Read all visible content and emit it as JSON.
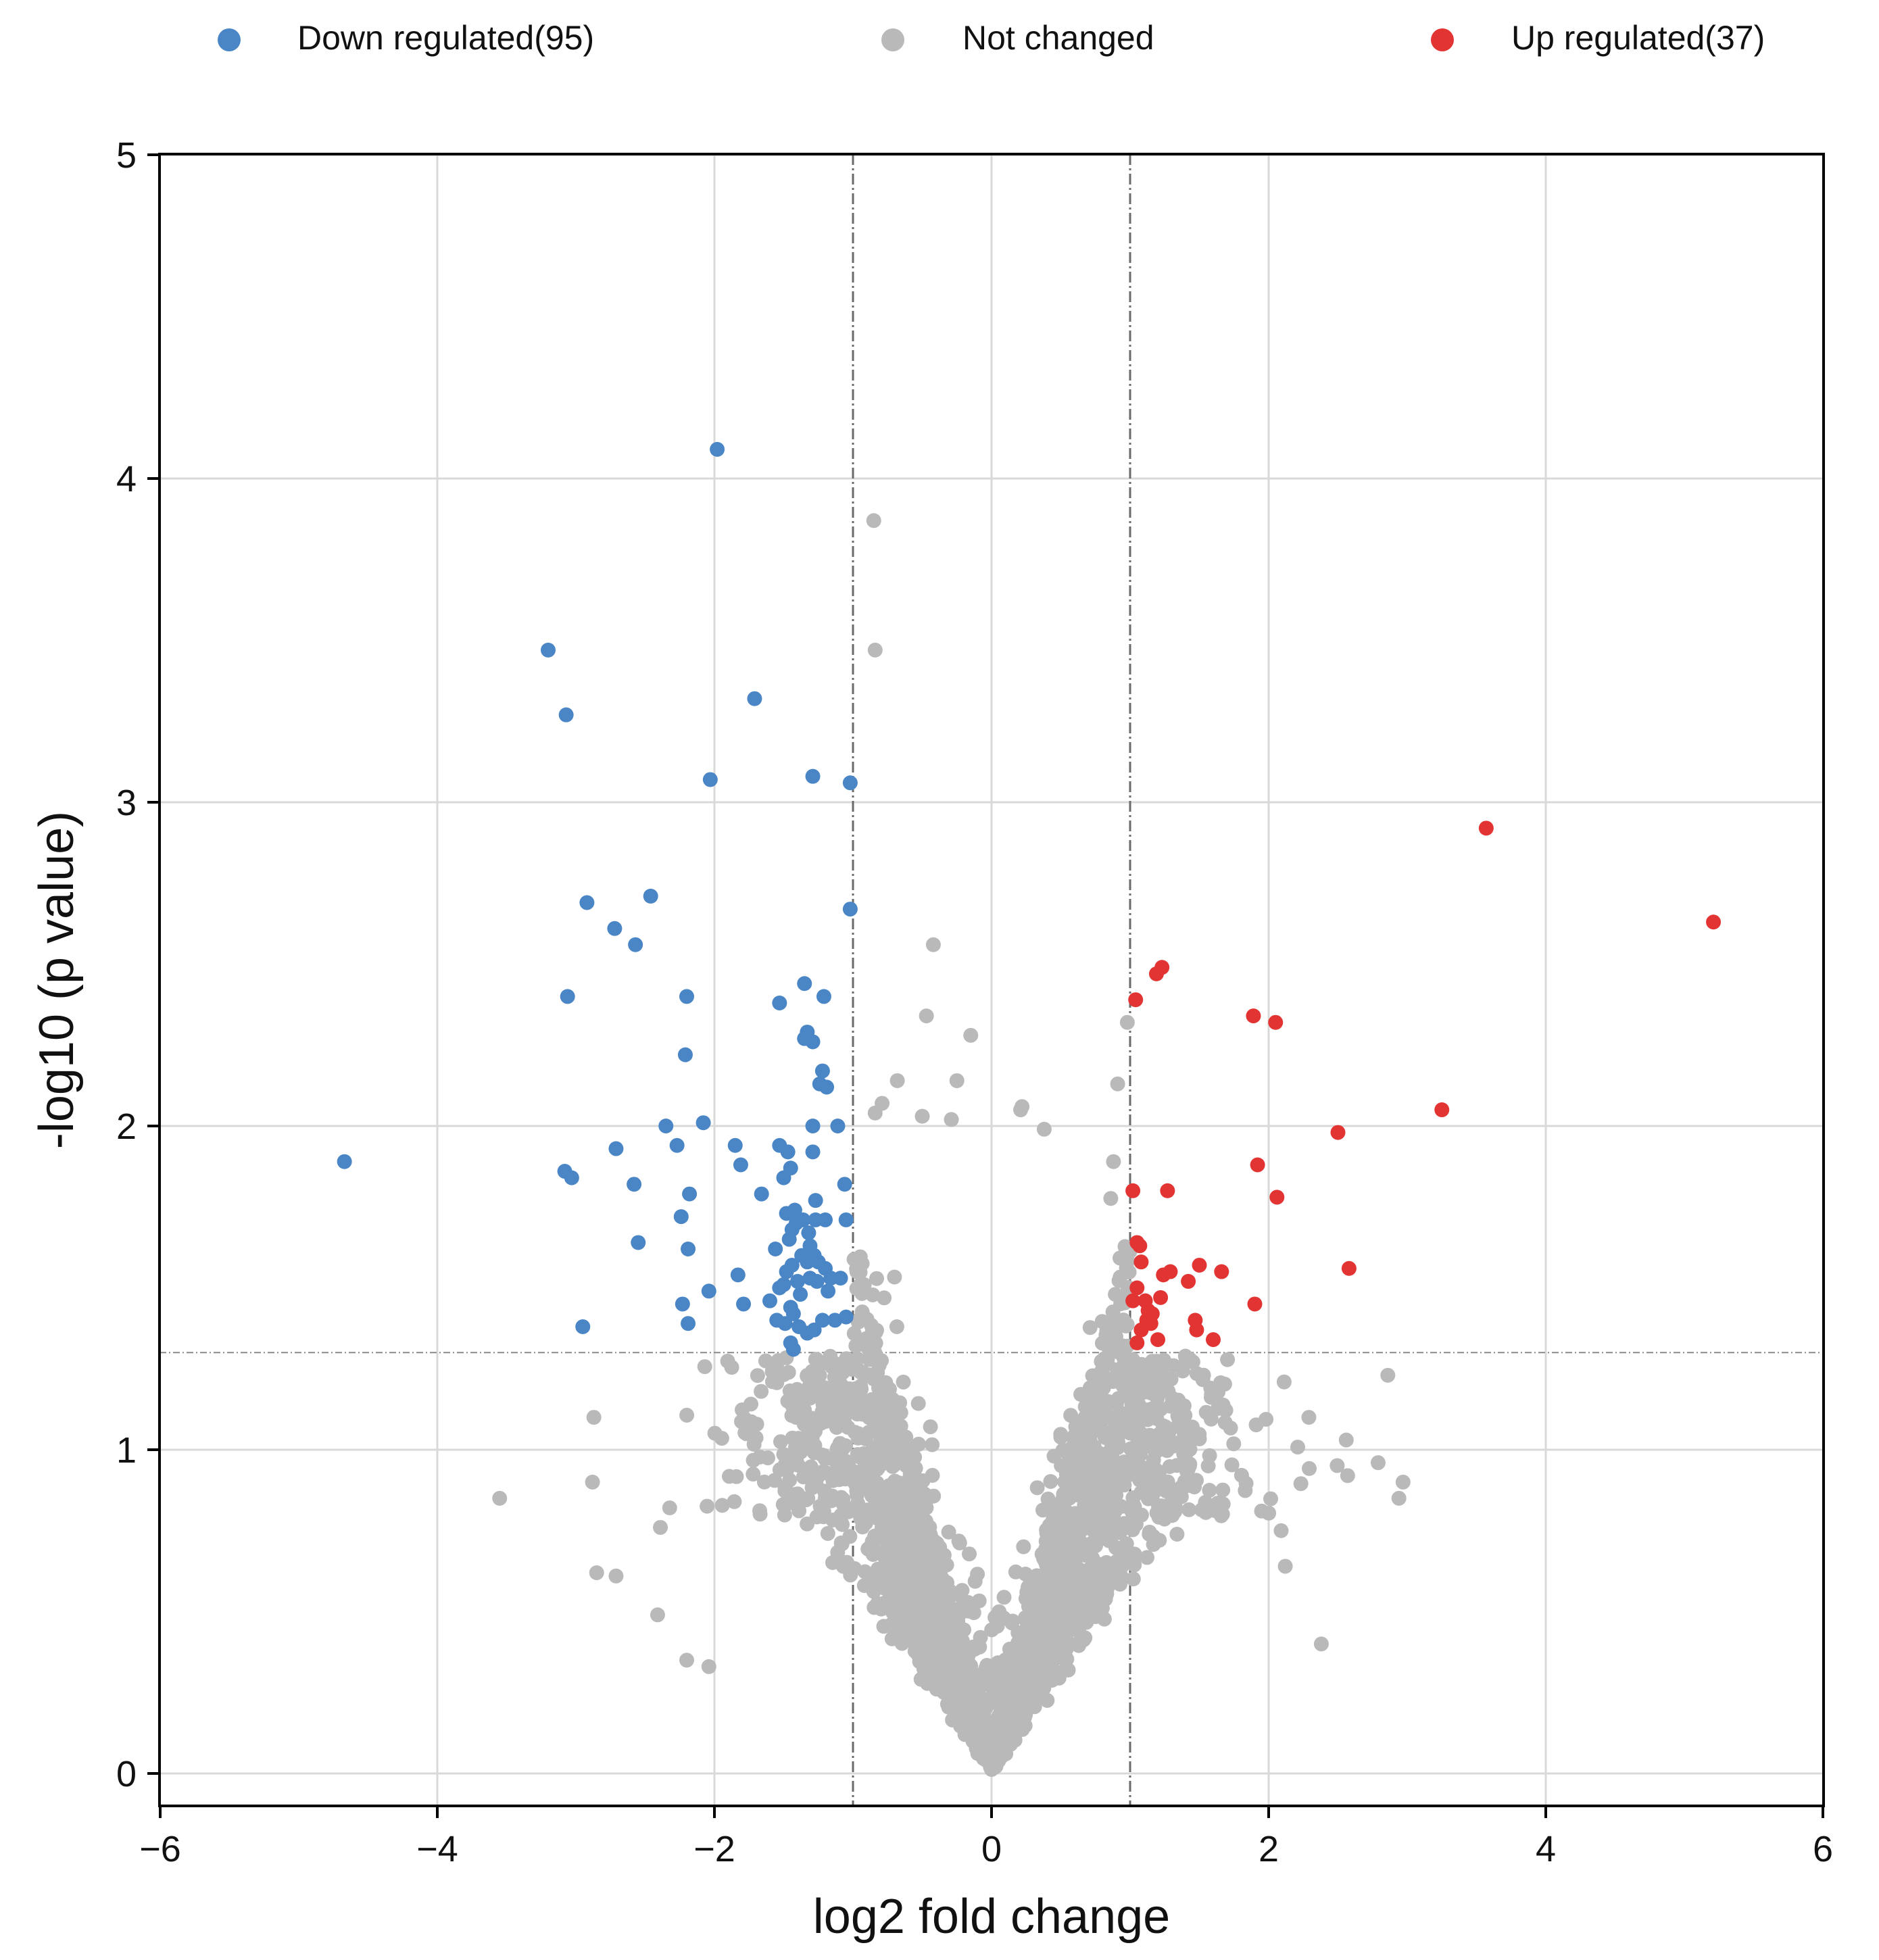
{
  "chart_data": {
    "type": "scatter",
    "title": "",
    "xlabel": "log2 fold change",
    "ylabel": "-log10 (p value)",
    "xlim": [
      -6,
      6
    ],
    "ylim": [
      -0.1,
      5
    ],
    "xticks": [
      -6,
      -4,
      -2,
      0,
      2,
      4,
      6
    ],
    "xtick_labels": [
      "−6",
      "−4",
      "−2",
      "0",
      "2",
      "4",
      "6"
    ],
    "yticks": [
      0,
      1,
      2,
      3,
      4,
      5
    ],
    "ytick_labels": [
      "0",
      "1",
      "2",
      "3",
      "4",
      "5"
    ],
    "grid": true,
    "thresholds": {
      "log2fc": [
        -1,
        1
      ],
      "neg_log10_p": 1.3
    },
    "legend": {
      "placement": "top",
      "entries": [
        {
          "label": "Down regulated(95)",
          "color": "#4a86c6"
        },
        {
          "label": "Not changed",
          "color": "#b9b9b9"
        },
        {
          "label": "Up regulated(37)",
          "color": "#e33434"
        }
      ]
    },
    "series": [
      {
        "name": "Down regulated",
        "color": "#4a86c6",
        "points": [
          [
            -1.98,
            4.09
          ],
          [
            -3.2,
            3.47
          ],
          [
            -3.07,
            3.27
          ],
          [
            -1.71,
            3.32
          ],
          [
            -2.03,
            3.07
          ],
          [
            -1.29,
            3.08
          ],
          [
            -1.02,
            3.06
          ],
          [
            -4.67,
            1.89
          ],
          [
            -2.92,
            2.69
          ],
          [
            -2.46,
            2.71
          ],
          [
            -2.72,
            2.61
          ],
          [
            -2.57,
            2.56
          ],
          [
            -1.02,
            2.67
          ],
          [
            -3.06,
            2.4
          ],
          [
            -2.2,
            2.4
          ],
          [
            -1.35,
            2.44
          ],
          [
            -1.21,
            2.4
          ],
          [
            -1.53,
            2.38
          ],
          [
            -2.21,
            2.22
          ],
          [
            -1.33,
            2.29
          ],
          [
            -1.35,
            2.27
          ],
          [
            -1.29,
            2.26
          ],
          [
            -1.22,
            2.17
          ],
          [
            -1.24,
            2.13
          ],
          [
            -1.19,
            2.12
          ],
          [
            -2.35,
            2.0
          ],
          [
            -2.08,
            2.01
          ],
          [
            -1.29,
            2.0
          ],
          [
            -1.11,
            2.0
          ],
          [
            -1.85,
            1.94
          ],
          [
            -2.27,
            1.94
          ],
          [
            -1.53,
            1.94
          ],
          [
            -1.47,
            1.92
          ],
          [
            -1.29,
            1.92
          ],
          [
            -1.81,
            1.88
          ],
          [
            -3.08,
            1.86
          ],
          [
            -3.03,
            1.84
          ],
          [
            -2.71,
            1.93
          ],
          [
            -1.5,
            1.84
          ],
          [
            -1.45,
            1.87
          ],
          [
            -2.58,
            1.82
          ],
          [
            -1.06,
            1.82
          ],
          [
            -2.18,
            1.79
          ],
          [
            -1.66,
            1.79
          ],
          [
            -1.27,
            1.77
          ],
          [
            -1.48,
            1.73
          ],
          [
            -1.42,
            1.74
          ],
          [
            -1.36,
            1.71
          ],
          [
            -1.27,
            1.71
          ],
          [
            -1.2,
            1.71
          ],
          [
            -1.05,
            1.71
          ],
          [
            -2.24,
            1.72
          ],
          [
            -1.41,
            1.7
          ],
          [
            -1.44,
            1.68
          ],
          [
            -1.32,
            1.67
          ],
          [
            -2.55,
            1.64
          ],
          [
            -2.19,
            1.62
          ],
          [
            -1.56,
            1.62
          ],
          [
            -1.46,
            1.65
          ],
          [
            -1.31,
            1.63
          ],
          [
            -1.28,
            1.6
          ],
          [
            -1.37,
            1.6
          ],
          [
            -1.33,
            1.58
          ],
          [
            -1.25,
            1.58
          ],
          [
            -1.44,
            1.57
          ],
          [
            -1.2,
            1.56
          ],
          [
            -1.48,
            1.55
          ],
          [
            -1.83,
            1.54
          ],
          [
            -1.16,
            1.53
          ],
          [
            -1.09,
            1.53
          ],
          [
            -1.31,
            1.53
          ],
          [
            -1.53,
            1.5
          ],
          [
            -1.5,
            1.51
          ],
          [
            -1.4,
            1.52
          ],
          [
            -1.26,
            1.52
          ],
          [
            -2.04,
            1.49
          ],
          [
            -1.18,
            1.49
          ],
          [
            -2.23,
            1.45
          ],
          [
            -1.79,
            1.45
          ],
          [
            -1.45,
            1.44
          ],
          [
            -1.43,
            1.42
          ],
          [
            -1.49,
            1.39
          ],
          [
            -1.55,
            1.4
          ],
          [
            -1.39,
            1.38
          ],
          [
            -1.33,
            1.36
          ],
          [
            -1.28,
            1.37
          ],
          [
            -1.22,
            1.4
          ],
          [
            -1.13,
            1.4
          ],
          [
            -2.19,
            1.39
          ],
          [
            -2.95,
            1.38
          ],
          [
            -1.43,
            1.31
          ],
          [
            -1.45,
            1.33
          ],
          [
            -1.05,
            1.41
          ],
          [
            -1.6,
            1.46
          ],
          [
            -1.38,
            1.48
          ]
        ]
      },
      {
        "name": "Up regulated",
        "color": "#e33434",
        "points": [
          [
            3.57,
            2.92
          ],
          [
            5.21,
            2.63
          ],
          [
            1.23,
            2.49
          ],
          [
            1.19,
            2.47
          ],
          [
            1.04,
            2.39
          ],
          [
            1.89,
            2.34
          ],
          [
            2.05,
            2.32
          ],
          [
            3.25,
            2.05
          ],
          [
            2.5,
            1.98
          ],
          [
            1.02,
            1.8
          ],
          [
            1.27,
            1.8
          ],
          [
            1.92,
            1.88
          ],
          [
            2.06,
            1.78
          ],
          [
            1.05,
            1.64
          ],
          [
            1.07,
            1.63
          ],
          [
            1.08,
            1.58
          ],
          [
            2.58,
            1.56
          ],
          [
            1.5,
            1.57
          ],
          [
            1.66,
            1.55
          ],
          [
            1.29,
            1.55
          ],
          [
            1.24,
            1.54
          ],
          [
            1.42,
            1.52
          ],
          [
            1.05,
            1.5
          ],
          [
            1.22,
            1.47
          ],
          [
            1.11,
            1.46
          ],
          [
            1.02,
            1.46
          ],
          [
            1.9,
            1.45
          ],
          [
            1.13,
            1.43
          ],
          [
            1.16,
            1.42
          ],
          [
            1.12,
            1.4
          ],
          [
            1.47,
            1.4
          ],
          [
            1.15,
            1.39
          ],
          [
            1.08,
            1.37
          ],
          [
            1.48,
            1.37
          ],
          [
            1.05,
            1.33
          ],
          [
            1.6,
            1.34
          ],
          [
            1.2,
            1.34
          ]
        ]
      }
    ],
    "not_changed": {
      "color": "#b9b9b9",
      "note": "roughly 3000 points forming a V-shaped cloud around x=0",
      "notable_points": [
        [
          -0.85,
          3.87
        ],
        [
          -0.84,
          3.47
        ],
        [
          -0.42,
          2.56
        ],
        [
          -0.47,
          2.34
        ],
        [
          -0.15,
          2.28
        ],
        [
          -0.25,
          2.14
        ],
        [
          -0.68,
          2.14
        ],
        [
          -0.79,
          2.07
        ],
        [
          -0.84,
          2.04
        ],
        [
          0.21,
          2.05
        ],
        [
          0.22,
          2.06
        ],
        [
          0.38,
          1.99
        ],
        [
          -0.29,
          2.02
        ],
        [
          -0.5,
          2.03
        ],
        [
          0.91,
          2.13
        ],
        [
          0.98,
          2.32
        ],
        [
          0.88,
          1.89
        ],
        [
          2.86,
          1.23
        ],
        [
          -3.55,
          0.85
        ],
        [
          -2.87,
          1.1
        ],
        [
          -2.88,
          0.9
        ],
        [
          -2.85,
          0.62
        ],
        [
          -2.71,
          0.61
        ],
        [
          -2.39,
          0.76
        ],
        [
          -2.41,
          0.49
        ],
        [
          -2.2,
          0.35
        ],
        [
          -2.04,
          0.33
        ],
        [
          2.38,
          0.4
        ],
        [
          2.09,
          0.75
        ],
        [
          2.29,
          1.1
        ],
        [
          2.57,
          0.92
        ],
        [
          2.56,
          1.03
        ],
        [
          2.79,
          0.96
        ],
        [
          2.97,
          0.9
        ],
        [
          2.94,
          0.85
        ],
        [
          2.12,
          0.64
        ]
      ]
    }
  }
}
